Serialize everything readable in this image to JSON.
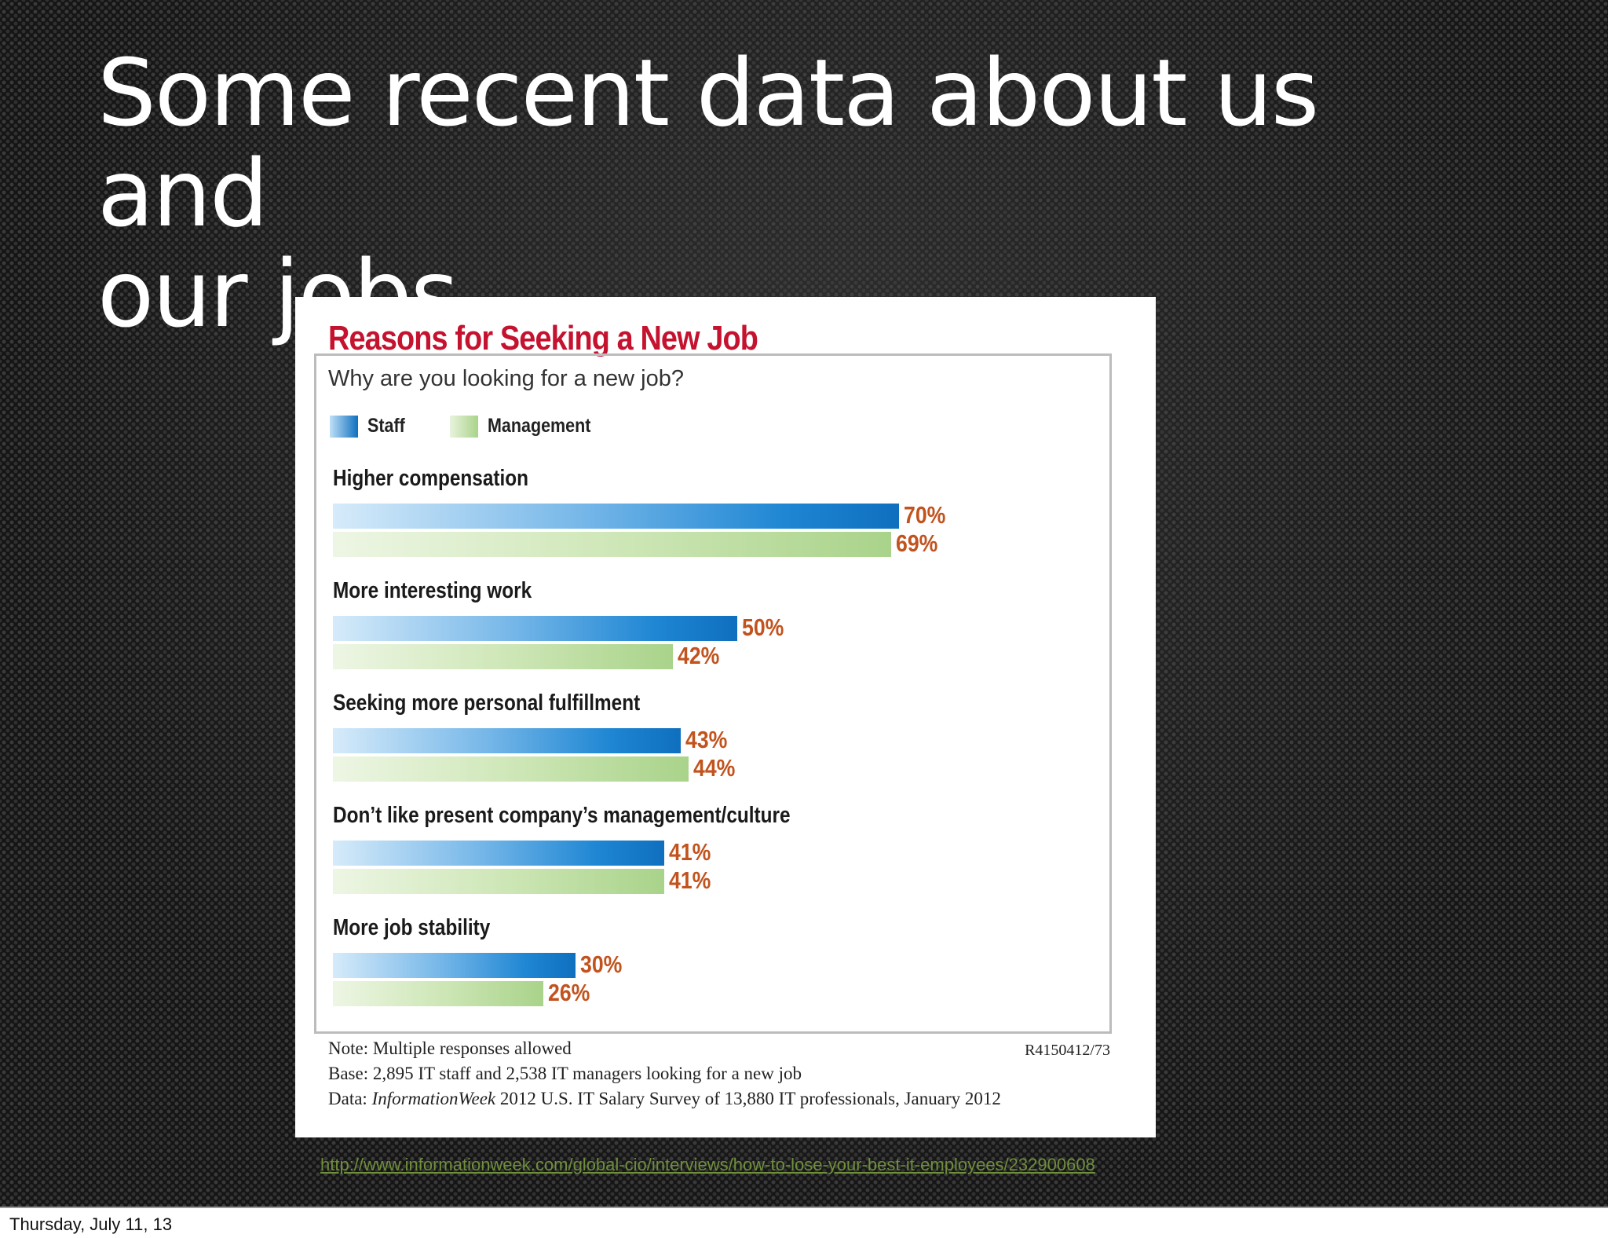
{
  "slide": {
    "title_line1": "Some recent data about us and",
    "title_line2": "our jobs",
    "source_url": "http://www.informationweek.com/global-cio/interviews/how-to-lose-your-best-it-employees/232900608",
    "footer_date": "Thursday, July 11, 13"
  },
  "chart_data": {
    "type": "bar",
    "orientation": "horizontal",
    "title": "Reasons for Seeking a New Job",
    "subtitle": "Why are you looking for a new job?",
    "categories": [
      "Higher compensation",
      "More interesting work",
      "Seeking more personal fulfillment",
      "Don’t like present company’s management/culture",
      "More job stability"
    ],
    "series": [
      {
        "name": "Staff",
        "values": [
          70,
          50,
          43,
          41,
          30
        ],
        "labels": [
          "70%",
          "50%",
          "43%",
          "41%",
          "30%"
        ]
      },
      {
        "name": "Management",
        "values": [
          69,
          42,
          44,
          41,
          26
        ],
        "labels": [
          "69%",
          "42%",
          "44%",
          "41%",
          "26%"
        ]
      }
    ],
    "value_unit": "%",
    "legend_position": "top-left",
    "grid": false,
    "notes": {
      "line1": "Note: Multiple responses allowed",
      "line2": "Base: 2,895 IT staff and 2,538 IT managers looking for a new job",
      "line3_prefix": "Data: ",
      "line3_source": "InformationWeek",
      "line3_rest": " 2012 U.S. IT Salary Survey of 13,880 IT professionals, January 2012",
      "id": "R4150412/73"
    }
  },
  "colors": {
    "title_red": "#c4122f",
    "value_orange": "#c2531e",
    "staff_blue": "#0f6fbf",
    "management_green": "#a9d38a",
    "link_green": "#6f8e3c"
  }
}
